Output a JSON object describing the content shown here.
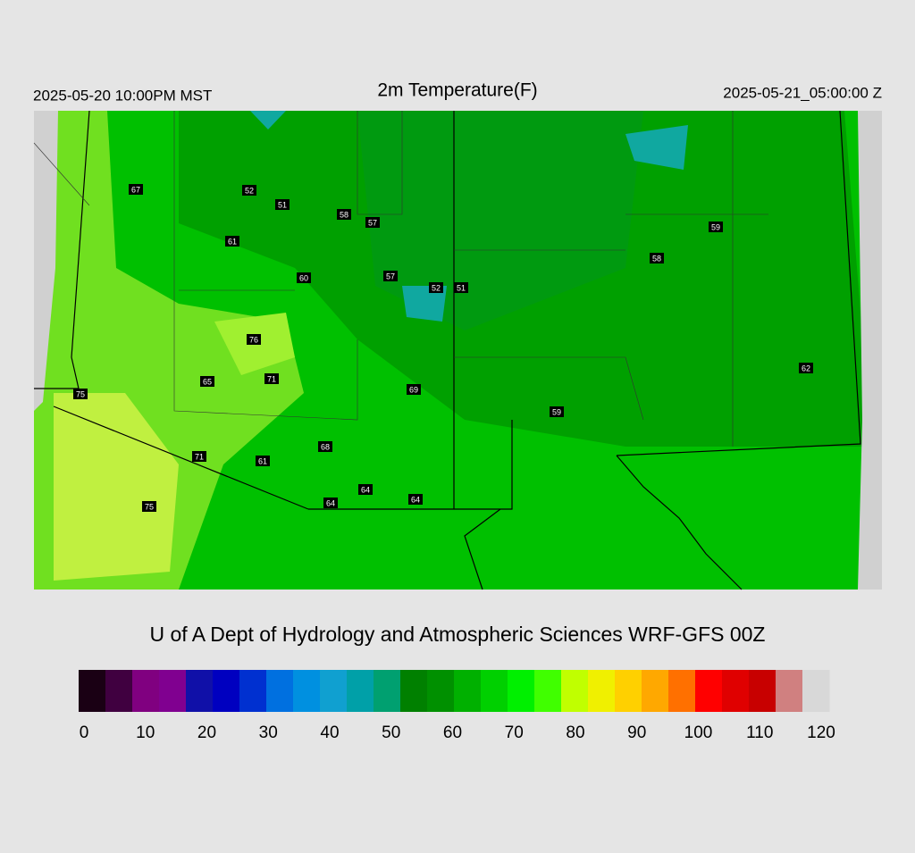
{
  "header": {
    "left": "2025-05-20 10:00PM MST",
    "title": "2m Temperature(F)",
    "right": "2025-05-21_05:00:00 Z"
  },
  "stations": [
    67,
    52,
    51,
    58,
    57,
    61,
    60,
    57,
    52,
    51,
    59,
    58,
    76,
    65,
    71,
    69,
    75,
    62,
    59,
    68,
    71,
    61,
    64,
    64,
    64,
    75
  ],
  "footer": "U of A Dept of Hydrology and Atmospheric Sciences WRF-GFS 00Z",
  "colorbar": {
    "lim": [
      0,
      120
    ],
    "ticks": [
      0,
      10,
      20,
      30,
      40,
      50,
      60,
      70,
      80,
      90,
      100,
      110,
      120
    ],
    "colors": [
      "#1a0014",
      "#400040",
      "#800080",
      "#800090",
      "#1010a8",
      "#0000c0",
      "#0030d0",
      "#0070e0",
      "#0090e0",
      "#10a0d0",
      "#00a0a8",
      "#00a070",
      "#008000",
      "#009000",
      "#00b000",
      "#00d000",
      "#00f000",
      "#40ff00",
      "#c0ff00",
      "#f0f000",
      "#ffd000",
      "#ffa800",
      "#ff7000",
      "#ff0000",
      "#e00000",
      "#c80000",
      "#d08080",
      "#d8d8d8"
    ]
  }
}
